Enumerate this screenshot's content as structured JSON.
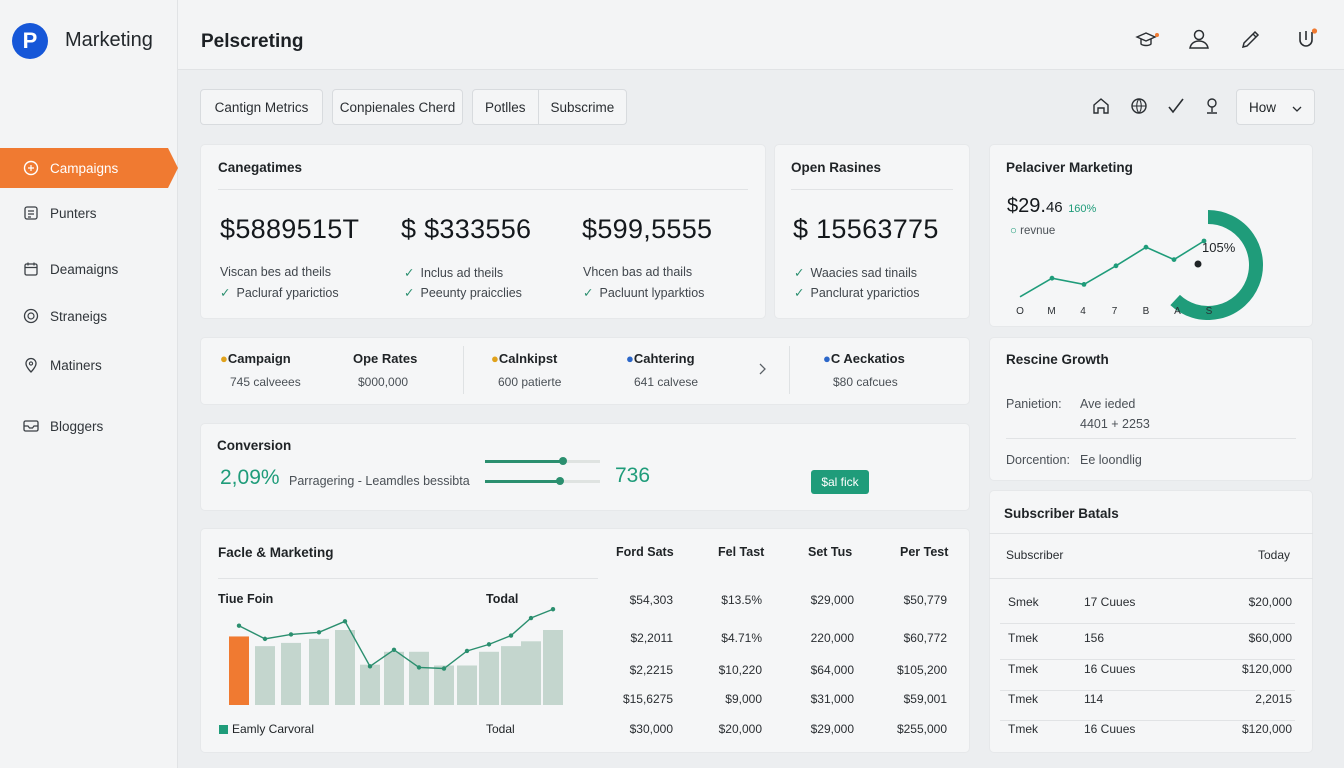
{
  "brand": {
    "logo_letter": "P",
    "name": "Marketing"
  },
  "header": {
    "title": "Pelscreting"
  },
  "header_icons": [
    "graduation-icon",
    "user-icon",
    "brush-icon",
    "power-icon"
  ],
  "sidebar": {
    "items": [
      {
        "label": "Campaigns",
        "icon": "campaign-icon",
        "active": true
      },
      {
        "label": "Punters",
        "icon": "list-icon"
      },
      {
        "label": "Deamaigns",
        "icon": "calendar-icon"
      },
      {
        "label": "Straneigs",
        "icon": "target-icon"
      },
      {
        "label": "Matiners",
        "icon": "pin-icon"
      },
      {
        "label": "Bloggers",
        "icon": "inbox-icon"
      }
    ]
  },
  "tabs": {
    "t1": "Cantign Metrics",
    "t2": "Conpienales Cherd",
    "t3": "Potlles",
    "t4": "Subscrime"
  },
  "toolbar": {
    "select_value": "How"
  },
  "metrics": {
    "title": "Canegatimes",
    "values": [
      "$5889515T",
      "$ $333556",
      "$599,5555"
    ],
    "checks": [
      [
        "Viscan bes ad theils",
        "Pacluraf yparictios"
      ],
      [
        "Inclus ad theils",
        "Peeunty praicclies"
      ],
      [
        "Vhcen bas ad thails",
        "Pacluunt lyparktios"
      ]
    ]
  },
  "open_rates": {
    "title": "Open Rasines",
    "value": "$ 15563775",
    "checks": [
      "Waacies sad tinails",
      "Panclurat yparictios"
    ]
  },
  "perf": {
    "title": "Pelaciver Marketing",
    "value": "$29.",
    "value_suffix": "46",
    "value_small": "160%",
    "legend": "revnue",
    "gauge_label": "105%",
    "gauge_value": 0.6,
    "xlabels": [
      "O",
      "M",
      "4",
      "7",
      "B",
      "A",
      "S"
    ],
    "line": [
      1,
      4,
      3,
      6,
      9,
      7,
      10
    ]
  },
  "stats": [
    {
      "name": "Campaign",
      "value": "745 calveees",
      "dot": "#e0a21c"
    },
    {
      "name": "Ope Rates",
      "value": "$000,000"
    },
    {
      "name": "Calnkipst",
      "value": "600 patierte",
      "dot": "#e0a21c"
    },
    {
      "name": "Cahtering",
      "value": "641 calvese",
      "dot": "#2c67c9"
    },
    {
      "name": "C Aeckatios",
      "value": "$80 cafcues",
      "dot": "#2c67c9"
    }
  ],
  "conversion": {
    "title": "Conversion",
    "rate": "2,09%",
    "desc": "Parragering - Leamdles bessibta",
    "count": "736",
    "bar1": 0.88,
    "bar2": 0.6,
    "badge": "$al fick"
  },
  "growth": {
    "title": "Rescine Growth",
    "r1_label": "Panietion:",
    "r1_val": "Ave ieded",
    "r1_sub": "4401 + 2253",
    "r2_label": "Dorcention:",
    "r2_val": "Ee loondlig"
  },
  "fm": {
    "title": "Facle & Marketing",
    "sub_left": "Tiue Foin",
    "sub_right": "Todal",
    "legend": "Eamly Carvoral",
    "foot": "Todal",
    "cols": [
      "Ford Sats",
      "Fel Tast",
      "Set Tus",
      "Per Test"
    ],
    "rows": [
      [
        "$54,303",
        "$13.5%",
        "$29,000",
        "$50,779"
      ],
      [
        "$2,2011",
        "$4.71%",
        "220,000",
        "$60,772"
      ],
      [
        "$2,2215",
        "$10,220",
        "$64,000",
        "$105,200"
      ],
      [
        "$15,6275",
        "$9,000",
        "$31,000",
        "$59,001"
      ],
      [
        "$30,000",
        "$20,000",
        "$29,000",
        "$255,000"
      ]
    ]
  },
  "chart_data": {
    "type": "bar",
    "categories": [
      "1",
      "2",
      "3",
      "4",
      "5",
      "6",
      "7",
      "8",
      "9",
      "10",
      "11",
      "12",
      "13",
      "14"
    ],
    "series": [
      {
        "name": "Eamly Carvoral",
        "values": [
          85,
          73,
          77,
          82,
          93,
          50,
          66,
          66,
          49,
          49,
          66,
          73,
          79,
          93
        ]
      },
      {
        "name": "Todal",
        "values": [
          85,
          73,
          77,
          79,
          89,
          48,
          63,
          47,
          46,
          62,
          68,
          76,
          92,
          100
        ]
      }
    ],
    "highlight_index": 0,
    "ylim": [
      0,
      100
    ]
  },
  "subs": {
    "title": "Subscriber Batals",
    "col1": "Subscriber",
    "col2": "Today",
    "rows": [
      [
        "Smek",
        "17 Cuues",
        "$20,000"
      ],
      [
        "Tmek",
        "156",
        "$60,000"
      ],
      [
        "Tmek",
        "16 Cuues",
        "$120,000"
      ],
      [
        "Tmek",
        "114",
        "2,2015"
      ],
      [
        "Tmek",
        "16 Cuues",
        "$120,000"
      ]
    ]
  },
  "colors": {
    "accent": "#f07a31",
    "teal": "#1f9c7a",
    "bar": "#c4d6ce",
    "line": "#2b8f6f"
  }
}
